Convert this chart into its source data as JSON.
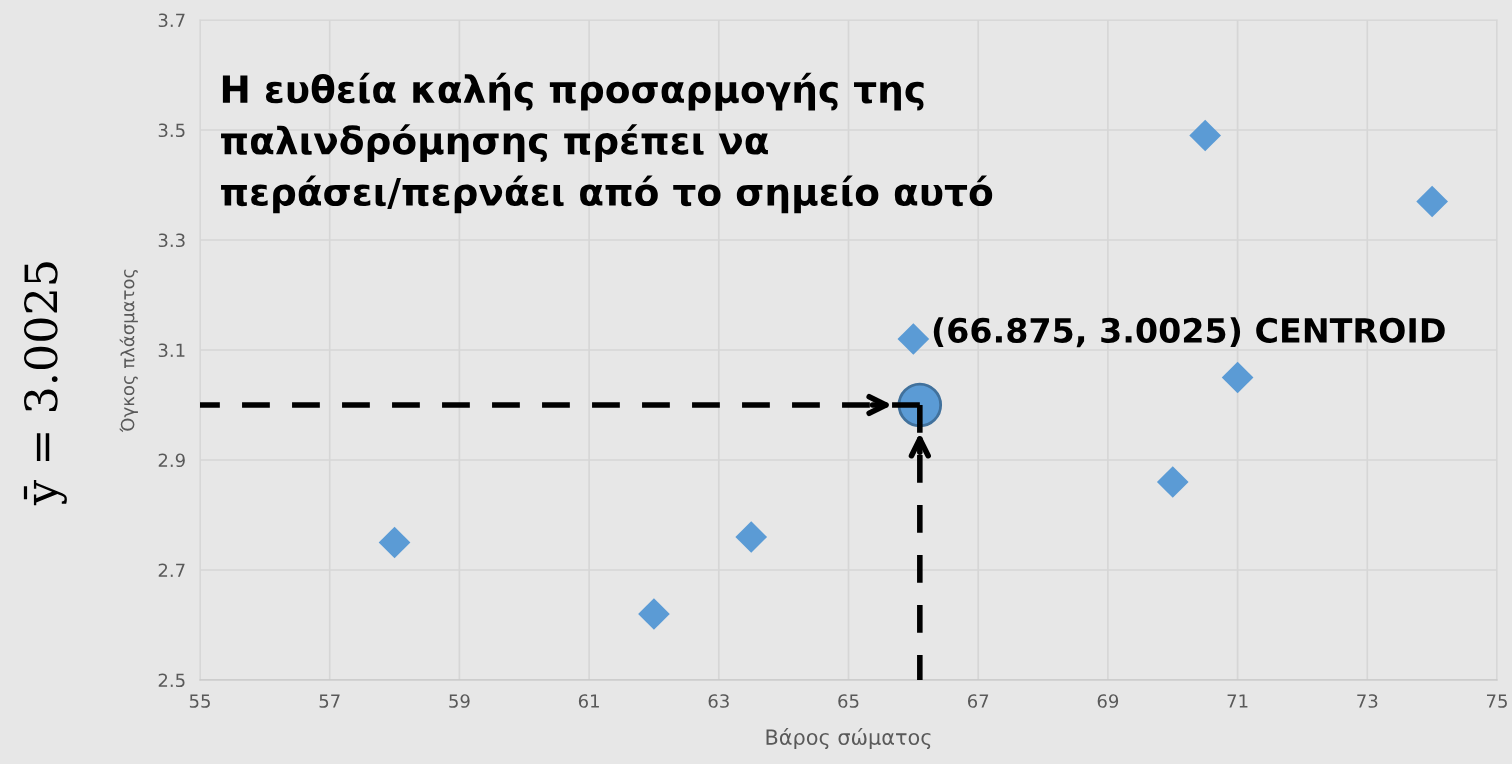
{
  "chart_data": {
    "type": "scatter",
    "xlabel": "Βάρος σώματος",
    "ylabel": "Όγκος πλάσματος",
    "xlim": [
      55,
      75
    ],
    "xticks": [
      55,
      57,
      59,
      61,
      63,
      65,
      67,
      69,
      71,
      73,
      75
    ],
    "ylim": [
      2.5,
      3.7
    ],
    "yticks": [
      2.5,
      2.7,
      2.9,
      3.1,
      3.3,
      3.5,
      3.7
    ],
    "grid": true,
    "legend": false,
    "series": [
      {
        "x": [
          58,
          62,
          63.5,
          66,
          70,
          70.5,
          71,
          74
        ],
        "values": [
          2.75,
          2.62,
          2.76,
          3.12,
          2.86,
          3.49,
          3.05,
          3.37
        ],
        "color": "#5b9bd5",
        "marker": "diamond"
      },
      {
        "x": [
          66.1
        ],
        "values": [
          3.0
        ],
        "color": "#5b9bd5",
        "marker": "circle"
      },
      {
        "type": "line",
        "x": [
          55,
          66.1
        ],
        "values": [
          3.0,
          3.0
        ],
        "color": "#000000",
        "line_style": "dashed",
        "marker": "none"
      },
      {
        "type": "line",
        "x": [
          66.1,
          66.1
        ],
        "values": [
          2.5,
          3.0
        ],
        "color": "#000000",
        "line_style": "dashed",
        "marker": "none"
      }
    ],
    "annotations": [
      "Η ευθεία καλής προσαρμογής της\nπαλινδρόμησης πρέπει να\nπεράσει/περνάει από το σημείο αυτό",
      {
        "text": "(66.875, 3.0025) CENTROID",
        "x": 66.1,
        "y": 3.0
      },
      "ȳ = 3.0025"
    ]
  }
}
